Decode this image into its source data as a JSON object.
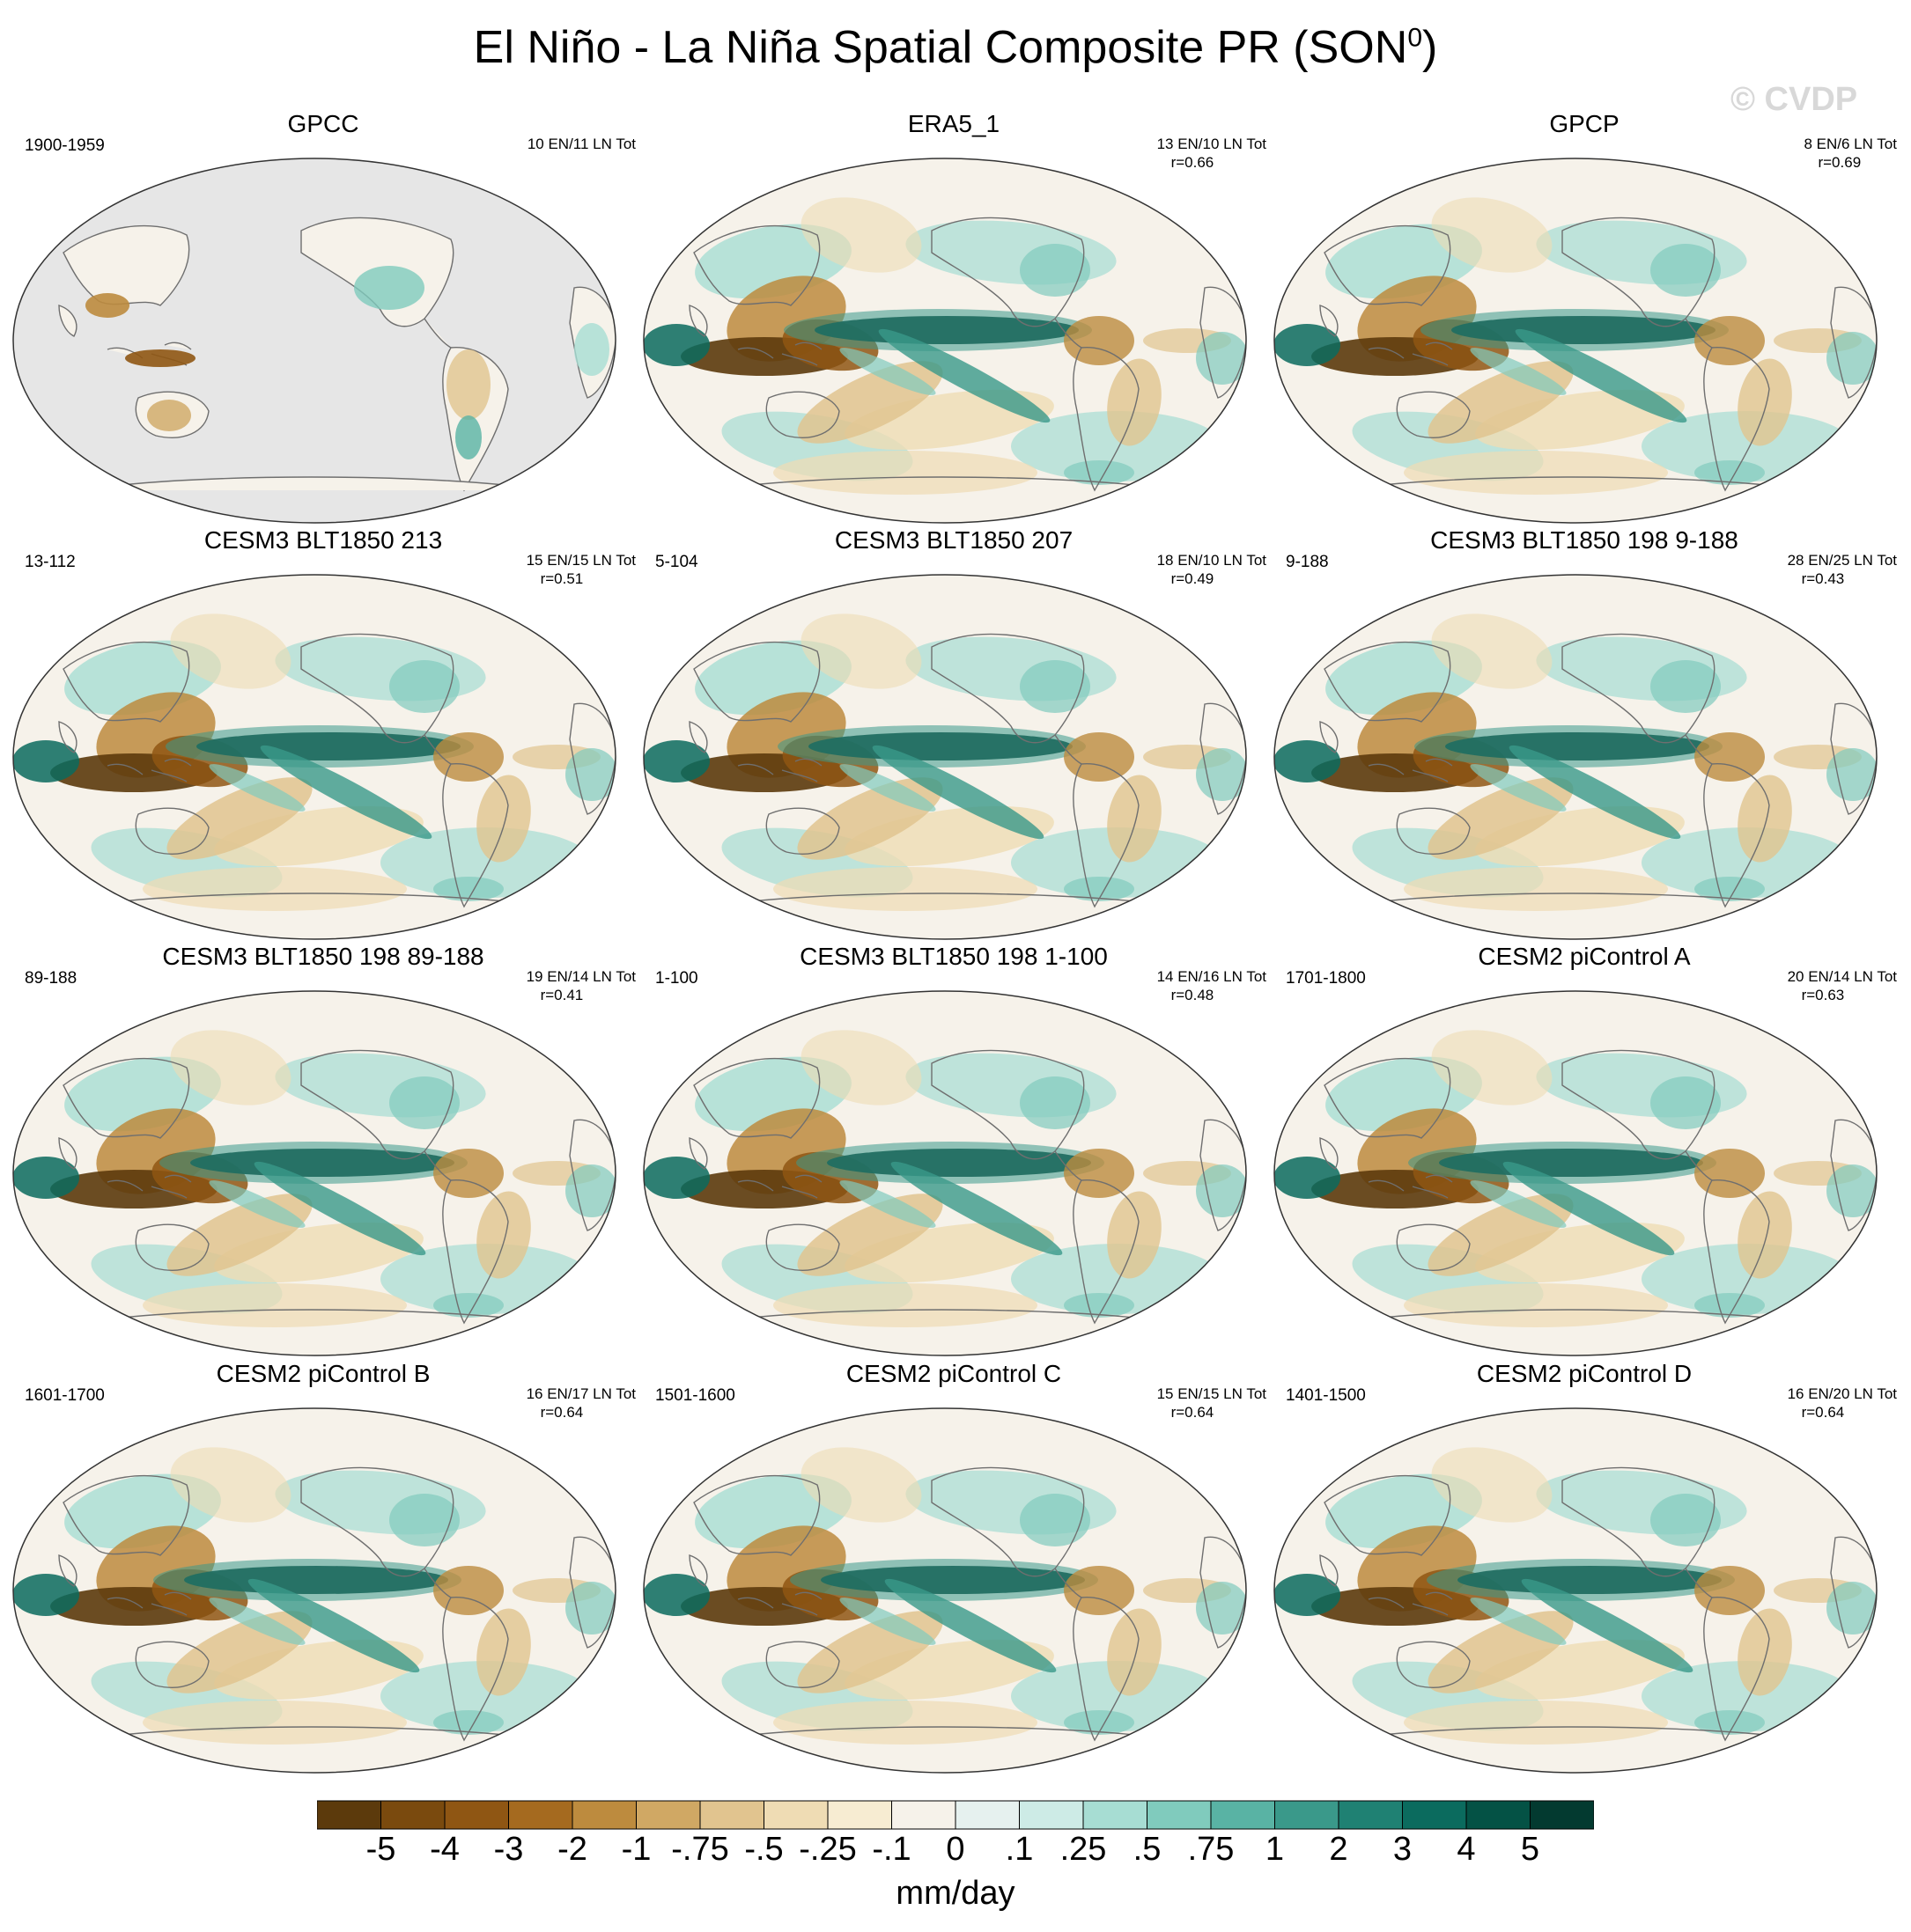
{
  "header": {
    "title_main": "El Niño - La Niña Spatial Composite PR (SON",
    "title_sup": "0",
    "title_end": ")",
    "watermark": "© CVDP"
  },
  "panels": [
    {
      "title": "GPCC",
      "period": "1900-1959",
      "events": "10 EN/11 LN Tot",
      "corr": "",
      "land_only": true
    },
    {
      "title": "ERA5_1",
      "period": "",
      "events": "13 EN/10 LN Tot",
      "corr": "r=0.66",
      "land_only": false
    },
    {
      "title": "GPCP",
      "period": "",
      "events": "8 EN/6 LN Tot",
      "corr": "r=0.69",
      "land_only": false
    },
    {
      "title": "CESM3 BLT1850 213",
      "period": "13-112",
      "events": "15 EN/15 LN Tot",
      "corr": "r=0.51",
      "land_only": false
    },
    {
      "title": "CESM3 BLT1850 207",
      "period": "5-104",
      "events": "18 EN/10 LN Tot",
      "corr": "r=0.49",
      "land_only": false
    },
    {
      "title": "CESM3 BLT1850 198 9-188",
      "period": "9-188",
      "events": "28 EN/25 LN Tot",
      "corr": "r=0.43",
      "land_only": false
    },
    {
      "title": "CESM3 BLT1850 198 89-188",
      "period": "89-188",
      "events": "19 EN/14 LN Tot",
      "corr": "r=0.41",
      "land_only": false
    },
    {
      "title": "CESM3 BLT1850 198 1-100",
      "period": "1-100",
      "events": "14 EN/16 LN Tot",
      "corr": "r=0.48",
      "land_only": false
    },
    {
      "title": "CESM2 piControl A",
      "period": "1701-1800",
      "events": "20 EN/14 LN Tot",
      "corr": "r=0.63",
      "land_only": false
    },
    {
      "title": "CESM2 piControl B",
      "period": "1601-1700",
      "events": "16 EN/17 LN Tot",
      "corr": "r=0.64",
      "land_only": false
    },
    {
      "title": "CESM2 piControl C",
      "period": "1501-1600",
      "events": "15 EN/15 LN Tot",
      "corr": "r=0.64",
      "land_only": false
    },
    {
      "title": "CESM2 piControl D",
      "period": "1401-1500",
      "events": "16 EN/20 LN Tot",
      "corr": "r=0.64",
      "land_only": false
    }
  ],
  "colorbar": {
    "labels": [
      "-5",
      "-4",
      "-3",
      "-2",
      "-1",
      "-.75",
      "-.5",
      "-.25",
      "-.1",
      "0",
      ".1",
      ".25",
      ".5",
      ".75",
      "1",
      "2",
      "3",
      "4",
      "5"
    ],
    "colors": [
      "#5c3a0c",
      "#7a4a0e",
      "#8f5613",
      "#a56a1f",
      "#bd8b3e",
      "#d0a864",
      "#e1c48f",
      "#efdcb4",
      "#f7ecd2",
      "#f6f2ea",
      "#e6f1ef",
      "#cdebe6",
      "#a7ddd3",
      "#80cbbd",
      "#59b3a4",
      "#3a998a",
      "#1f8173",
      "#0b6b5e",
      "#045245",
      "#033a30"
    ],
    "units": "mm/day"
  },
  "colors": {
    "land_mask": "#e6e6e6",
    "coast": "#6f6f6f",
    "neutral": "#f6f2ea"
  }
}
